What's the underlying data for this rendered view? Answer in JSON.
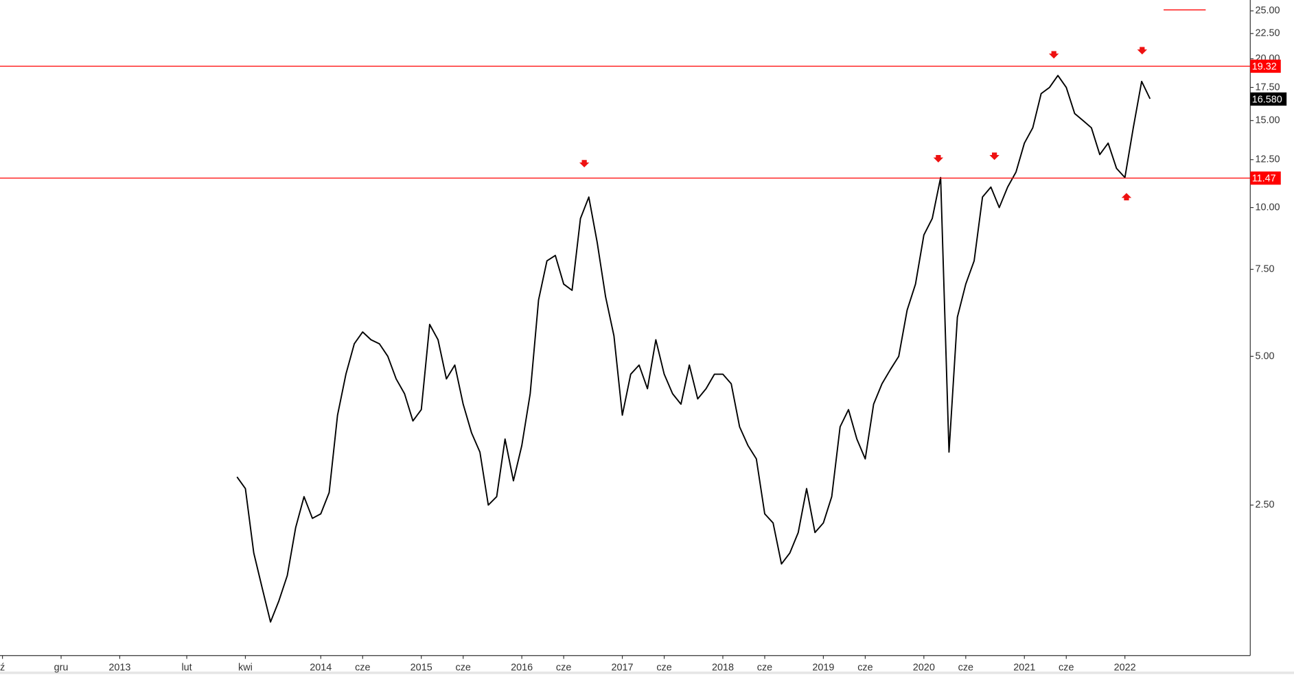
{
  "chart_data": {
    "type": "line",
    "log_scale": true,
    "color": "#000000",
    "categories": [
      "ź",
      null,
      null,
      null,
      null,
      null,
      null,
      "gru",
      null,
      null,
      null,
      null,
      null,
      null,
      "2013",
      null,
      null,
      null,
      null,
      null,
      null,
      null,
      "lut",
      null,
      null,
      null,
      null,
      null,
      null,
      "kwi",
      null,
      null,
      null,
      null,
      null,
      null,
      null,
      null,
      "2014",
      null,
      null,
      null,
      null,
      "cze",
      null,
      null,
      null,
      null,
      null,
      null,
      "2015",
      null,
      null,
      null,
      null,
      "cze",
      null,
      null,
      null,
      null,
      null,
      null,
      "2016",
      null,
      null,
      null,
      null,
      "cze",
      null,
      null,
      null,
      null,
      null,
      null,
      "2017",
      null,
      null,
      null,
      null,
      "cze",
      null,
      null,
      null,
      null,
      null,
      null,
      "2018",
      null,
      null,
      null,
      null,
      "cze",
      null,
      null,
      null,
      null,
      null,
      null,
      "2019",
      null,
      null,
      null,
      null,
      "cze",
      null,
      null,
      null,
      null,
      null,
      null,
      "2020",
      null,
      null,
      null,
      null,
      "cze",
      null,
      null,
      null,
      null,
      null,
      null,
      "2021",
      null,
      null,
      null,
      null,
      "cze",
      null,
      null,
      null,
      null,
      null,
      null,
      "2022",
      null,
      null,
      null
    ],
    "values": [
      null,
      null,
      null,
      null,
      null,
      null,
      null,
      null,
      null,
      null,
      null,
      null,
      null,
      null,
      null,
      null,
      null,
      null,
      null,
      null,
      null,
      null,
      null,
      null,
      null,
      null,
      null,
      null,
      2.85,
      2.7,
      2.0,
      1.7,
      1.45,
      1.6,
      1.8,
      2.25,
      2.6,
      2.35,
      2.4,
      2.65,
      3.8,
      4.6,
      5.3,
      5.6,
      5.4,
      5.3,
      5.0,
      4.5,
      4.2,
      3.7,
      3.9,
      5.8,
      5.4,
      4.5,
      4.8,
      4.0,
      3.5,
      3.2,
      2.5,
      2.6,
      3.4,
      2.8,
      3.3,
      4.2,
      6.5,
      7.8,
      8.0,
      7.0,
      6.8,
      9.5,
      10.5,
      8.5,
      6.6,
      5.5,
      3.8,
      4.6,
      4.8,
      4.3,
      5.4,
      4.6,
      4.2,
      4.0,
      4.8,
      4.1,
      4.3,
      4.6,
      4.6,
      4.4,
      3.6,
      3.3,
      3.1,
      2.4,
      2.3,
      1.9,
      2.0,
      2.2,
      2.7,
      2.2,
      2.3,
      2.6,
      3.6,
      3.9,
      3.4,
      3.1,
      4.0,
      4.4,
      4.7,
      5.0,
      6.2,
      7.0,
      8.8,
      9.5,
      11.5,
      3.2,
      6.0,
      7.0,
      7.8,
      10.5,
      11.0,
      10.0,
      11.0,
      11.8,
      13.5,
      14.5,
      17.0,
      17.5,
      18.5,
      17.5,
      15.5,
      15.0,
      14.5,
      12.8,
      13.5,
      12.0,
      11.5,
      14.5,
      18.0,
      16.6
    ],
    "ylim": [
      1.24,
      26.3
    ],
    "yticks": [
      {
        "value": 2.5,
        "label": "2.50"
      },
      {
        "value": 5,
        "label": "5.00"
      },
      {
        "value": 7.5,
        "label": "7.50"
      },
      {
        "value": 10,
        "label": "10.00"
      },
      {
        "value": 12.5,
        "label": "12.50"
      },
      {
        "value": 15,
        "label": "15.00"
      },
      {
        "value": 17.5,
        "label": "17.50"
      },
      {
        "value": 20,
        "label": "20.00"
      },
      {
        "value": 22.5,
        "label": "22.50"
      },
      {
        "value": 25,
        "label": "25.00"
      }
    ],
    "hlines": [
      19.32,
      11.47
    ],
    "hline_color": "#ff0000",
    "last_price": {
      "value": 16.58,
      "label": "16.580"
    },
    "grid": false
  }
}
